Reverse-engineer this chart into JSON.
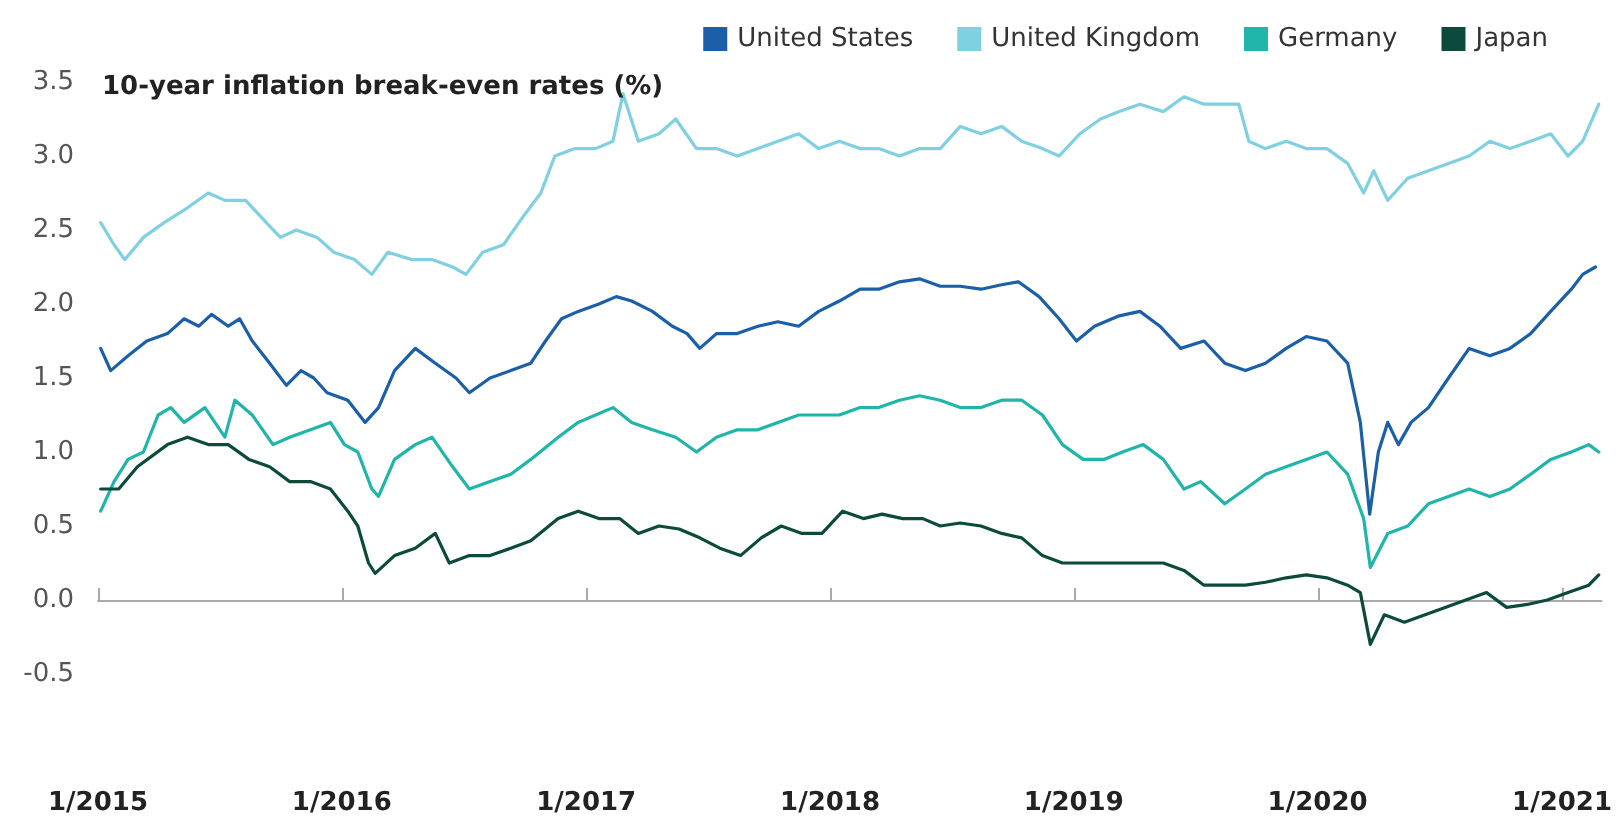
{
  "chart_data": {
    "type": "line",
    "title": "10-year inflation break-even rates (%)",
    "xlim": [
      "2015-01-01",
      "2021-03-01"
    ],
    "xticks": [
      {
        "value": "2015-01-01",
        "label": "1/2015"
      },
      {
        "value": "2016-01-01",
        "label": "1/2016"
      },
      {
        "value": "2017-01-01",
        "label": "1/2017"
      },
      {
        "value": "2018-01-01",
        "label": "1/2018"
      },
      {
        "value": "2019-01-01",
        "label": "1/2019"
      },
      {
        "value": "2020-01-01",
        "label": "1/2020"
      },
      {
        "value": "2021-01-01",
        "label": "1/2021"
      }
    ],
    "ylim": [
      -0.5,
      3.5
    ],
    "yticks": [
      {
        "value": -0.5,
        "label": "-0.5"
      },
      {
        "value": 0,
        "label": "0.0"
      },
      {
        "value": 0.5,
        "label": "0.5"
      },
      {
        "value": 1,
        "label": "1.0"
      },
      {
        "value": 1.5,
        "label": "1.5"
      },
      {
        "value": 2,
        "label": "2.0"
      },
      {
        "value": 2.5,
        "label": "2.5"
      },
      {
        "value": 3,
        "label": "3.0"
      },
      {
        "value": 3.5,
        "label": "3.5"
      }
    ],
    "legend": "top right",
    "marker": "none",
    "line_style": "solid",
    "series": [
      {
        "name": "United States",
        "color": "#1b5fa8",
        "x": [
          "2015-01-05",
          "2015-01-20",
          "2015-02-15",
          "2015-03-15",
          "2015-04-15",
          "2015-05-10",
          "2015-06-01",
          "2015-06-20",
          "2015-07-15",
          "2015-08-01",
          "2015-08-20",
          "2015-09-15",
          "2015-10-10",
          "2015-11-01",
          "2015-11-20",
          "2015-12-10",
          "2016-01-10",
          "2016-02-05",
          "2016-02-25",
          "2016-03-20",
          "2016-04-20",
          "2016-05-20",
          "2016-06-20",
          "2016-07-10",
          "2016-08-10",
          "2016-09-10",
          "2016-10-10",
          "2016-11-01",
          "2016-11-25",
          "2016-12-20",
          "2017-01-20",
          "2017-02-15",
          "2017-03-10",
          "2017-04-10",
          "2017-05-10",
          "2017-06-01",
          "2017-06-20",
          "2017-07-15",
          "2017-08-15",
          "2017-09-15",
          "2017-10-15",
          "2017-11-15",
          "2017-12-15",
          "2018-01-15",
          "2018-02-15",
          "2018-03-15",
          "2018-04-15",
          "2018-05-15",
          "2018-06-15",
          "2018-07-15",
          "2018-08-15",
          "2018-09-15",
          "2018-10-10",
          "2018-11-10",
          "2018-12-10",
          "2019-01-05",
          "2019-02-01",
          "2019-03-10",
          "2019-04-10",
          "2019-05-10",
          "2019-06-10",
          "2019-07-15",
          "2019-08-15",
          "2019-09-15",
          "2019-10-15",
          "2019-11-15",
          "2019-12-15",
          "2020-01-15",
          "2020-02-15",
          "2020-03-05",
          "2020-03-19",
          "2020-04-01",
          "2020-04-15",
          "2020-05-01",
          "2020-05-20",
          "2020-06-15",
          "2020-07-15",
          "2020-08-15",
          "2020-09-15",
          "2020-10-15",
          "2020-11-15",
          "2020-12-15",
          "2021-01-15",
          "2021-02-01",
          "2021-02-20"
        ],
        "values": [
          1.7,
          1.55,
          1.65,
          1.75,
          1.8,
          1.9,
          1.85,
          1.93,
          1.85,
          1.9,
          1.75,
          1.6,
          1.45,
          1.55,
          1.5,
          1.4,
          1.35,
          1.2,
          1.3,
          1.55,
          1.7,
          1.6,
          1.5,
          1.4,
          1.5,
          1.55,
          1.6,
          1.75,
          1.9,
          1.95,
          2.0,
          2.05,
          2.02,
          1.95,
          1.85,
          1.8,
          1.7,
          1.8,
          1.8,
          1.85,
          1.88,
          1.85,
          1.95,
          2.02,
          2.1,
          2.1,
          2.15,
          2.17,
          2.12,
          2.12,
          2.1,
          2.13,
          2.15,
          2.05,
          1.9,
          1.75,
          1.85,
          1.92,
          1.95,
          1.85,
          1.7,
          1.75,
          1.6,
          1.55,
          1.6,
          1.7,
          1.78,
          1.75,
          1.6,
          1.2,
          0.58,
          1.0,
          1.2,
          1.05,
          1.2,
          1.3,
          1.5,
          1.7,
          1.65,
          1.7,
          1.8,
          1.95,
          2.1,
          2.2,
          2.25
        ]
      },
      {
        "name": "United Kingdom",
        "color": "#7fd0e0",
        "x": [
          "2015-01-05",
          "2015-01-25",
          "2015-02-10",
          "2015-03-10",
          "2015-04-10",
          "2015-05-15",
          "2015-06-15",
          "2015-07-10",
          "2015-08-10",
          "2015-09-10",
          "2015-10-01",
          "2015-10-25",
          "2015-11-25",
          "2015-12-20",
          "2016-01-20",
          "2016-02-15",
          "2016-03-10",
          "2016-04-15",
          "2016-05-15",
          "2016-06-15",
          "2016-07-05",
          "2016-07-30",
          "2016-08-30",
          "2016-09-30",
          "2016-10-25",
          "2016-11-15",
          "2016-12-15",
          "2017-01-15",
          "2017-02-10",
          "2017-02-25",
          "2017-03-20",
          "2017-04-20",
          "2017-05-15",
          "2017-06-15",
          "2017-07-15",
          "2017-08-15",
          "2017-09-15",
          "2017-10-15",
          "2017-11-15",
          "2017-12-15",
          "2018-01-15",
          "2018-02-15",
          "2018-03-15",
          "2018-04-15",
          "2018-05-15",
          "2018-06-15",
          "2018-07-15",
          "2018-08-15",
          "2018-09-15",
          "2018-10-15",
          "2018-11-15",
          "2018-12-10",
          "2019-01-10",
          "2019-02-10",
          "2019-03-10",
          "2019-04-10",
          "2019-05-15",
          "2019-06-15",
          "2019-07-15",
          "2019-08-15",
          "2019-09-05",
          "2019-09-20",
          "2019-10-15",
          "2019-11-15",
          "2019-12-15",
          "2020-01-15",
          "2020-02-15",
          "2020-03-10",
          "2020-03-25",
          "2020-04-15",
          "2020-05-15",
          "2020-06-15",
          "2020-07-15",
          "2020-08-15",
          "2020-09-15",
          "2020-10-15",
          "2020-11-15",
          "2020-12-15",
          "2021-01-10",
          "2021-02-01",
          "2021-02-25"
        ],
        "values": [
          2.55,
          2.4,
          2.3,
          2.45,
          2.55,
          2.65,
          2.75,
          2.7,
          2.7,
          2.55,
          2.45,
          2.5,
          2.45,
          2.35,
          2.3,
          2.2,
          2.35,
          2.3,
          2.3,
          2.25,
          2.2,
          2.35,
          2.4,
          2.6,
          2.75,
          3.0,
          3.05,
          3.05,
          3.1,
          3.42,
          3.1,
          3.15,
          3.25,
          3.05,
          3.05,
          3.0,
          3.05,
          3.1,
          3.15,
          3.05,
          3.1,
          3.05,
          3.05,
          3.0,
          3.05,
          3.05,
          3.2,
          3.15,
          3.2,
          3.1,
          3.05,
          3.0,
          3.15,
          3.25,
          3.3,
          3.35,
          3.3,
          3.4,
          3.35,
          3.35,
          3.35,
          3.1,
          3.05,
          3.1,
          3.05,
          3.05,
          2.95,
          2.75,
          2.9,
          2.7,
          2.85,
          2.9,
          2.95,
          3.0,
          3.1,
          3.05,
          3.1,
          3.15,
          3.0,
          3.1,
          3.35
        ]
      },
      {
        "name": "Germany",
        "color": "#1fb5a8",
        "x": [
          "2015-01-05",
          "2015-01-25",
          "2015-02-15",
          "2015-03-10",
          "2015-04-01",
          "2015-04-20",
          "2015-05-10",
          "2015-06-10",
          "2015-07-10",
          "2015-07-25",
          "2015-08-20",
          "2015-09-20",
          "2015-10-15",
          "2015-11-15",
          "2015-12-15",
          "2016-01-05",
          "2016-01-25",
          "2016-02-15",
          "2016-02-25",
          "2016-03-20",
          "2016-04-20",
          "2016-05-15",
          "2016-06-15",
          "2016-07-10",
          "2016-08-10",
          "2016-09-10",
          "2016-10-10",
          "2016-11-20",
          "2016-12-20",
          "2017-01-15",
          "2017-02-10",
          "2017-03-10",
          "2017-04-10",
          "2017-05-15",
          "2017-06-15",
          "2017-07-15",
          "2017-08-15",
          "2017-09-15",
          "2017-10-15",
          "2017-11-15",
          "2017-12-15",
          "2018-01-15",
          "2018-02-15",
          "2018-03-15",
          "2018-04-15",
          "2018-05-15",
          "2018-06-15",
          "2018-07-15",
          "2018-08-15",
          "2018-09-15",
          "2018-10-15",
          "2018-11-15",
          "2018-12-15",
          "2019-01-15",
          "2019-02-15",
          "2019-03-15",
          "2019-04-15",
          "2019-05-15",
          "2019-06-15",
          "2019-07-10",
          "2019-08-15",
          "2019-09-15",
          "2019-10-15",
          "2019-11-15",
          "2019-12-15",
          "2020-01-15",
          "2020-02-15",
          "2020-03-10",
          "2020-03-20",
          "2020-04-15",
          "2020-05-15",
          "2020-06-15",
          "2020-07-15",
          "2020-08-15",
          "2020-09-15",
          "2020-10-15",
          "2020-11-15",
          "2020-12-15",
          "2021-01-15",
          "2021-02-10",
          "2021-02-25"
        ],
        "values": [
          0.6,
          0.8,
          0.95,
          1.0,
          1.25,
          1.3,
          1.2,
          1.3,
          1.1,
          1.35,
          1.25,
          1.05,
          1.1,
          1.15,
          1.2,
          1.05,
          1.0,
          0.75,
          0.7,
          0.95,
          1.05,
          1.1,
          0.9,
          0.75,
          0.8,
          0.85,
          0.95,
          1.1,
          1.2,
          1.25,
          1.3,
          1.2,
          1.15,
          1.1,
          1.0,
          1.1,
          1.15,
          1.15,
          1.2,
          1.25,
          1.25,
          1.25,
          1.3,
          1.3,
          1.35,
          1.38,
          1.35,
          1.3,
          1.3,
          1.35,
          1.35,
          1.25,
          1.05,
          0.95,
          0.95,
          1.0,
          1.05,
          0.95,
          0.75,
          0.8,
          0.65,
          0.75,
          0.85,
          0.9,
          0.95,
          1.0,
          0.85,
          0.55,
          0.22,
          0.45,
          0.5,
          0.65,
          0.7,
          0.75,
          0.7,
          0.75,
          0.85,
          0.95,
          1.0,
          1.05,
          1.0
        ]
      },
      {
        "name": "Japan",
        "color": "#0c4a3c",
        "x": [
          "2015-01-05",
          "2015-02-01",
          "2015-03-01",
          "2015-04-15",
          "2015-05-15",
          "2015-06-15",
          "2015-07-15",
          "2015-08-15",
          "2015-09-15",
          "2015-10-15",
          "2015-11-15",
          "2015-12-15",
          "2016-01-10",
          "2016-01-25",
          "2016-02-10",
          "2016-02-20",
          "2016-03-20",
          "2016-04-20",
          "2016-05-20",
          "2016-06-10",
          "2016-07-10",
          "2016-08-10",
          "2016-09-10",
          "2016-10-10",
          "2016-11-20",
          "2016-12-20",
          "2017-01-20",
          "2017-02-20",
          "2017-03-20",
          "2017-04-20",
          "2017-05-20",
          "2017-06-20",
          "2017-07-20",
          "2017-08-20",
          "2017-09-20",
          "2017-10-20",
          "2017-11-20",
          "2017-12-20",
          "2018-01-20",
          "2018-02-20",
          "2018-03-20",
          "2018-04-20",
          "2018-05-20",
          "2018-06-15",
          "2018-07-15",
          "2018-08-15",
          "2018-09-15",
          "2018-10-15",
          "2018-11-15",
          "2018-12-15",
          "2019-01-15",
          "2019-02-15",
          "2019-03-15",
          "2019-04-15",
          "2019-05-15",
          "2019-06-15",
          "2019-07-15",
          "2019-08-15",
          "2019-09-15",
          "2019-10-15",
          "2019-11-15",
          "2019-12-15",
          "2020-01-15",
          "2020-02-15",
          "2020-03-05",
          "2020-03-20",
          "2020-04-10",
          "2020-05-10",
          "2020-06-10",
          "2020-07-10",
          "2020-08-10",
          "2020-09-10",
          "2020-10-10",
          "2020-11-10",
          "2020-12-10",
          "2021-01-10",
          "2021-02-10",
          "2021-02-25"
        ],
        "values": [
          0.75,
          0.75,
          0.9,
          1.05,
          1.1,
          1.05,
          1.05,
          0.95,
          0.9,
          0.8,
          0.8,
          0.75,
          0.6,
          0.5,
          0.25,
          0.18,
          0.3,
          0.35,
          0.45,
          0.25,
          0.3,
          0.3,
          0.35,
          0.4,
          0.55,
          0.6,
          0.55,
          0.55,
          0.45,
          0.5,
          0.48,
          0.42,
          0.35,
          0.3,
          0.42,
          0.5,
          0.45,
          0.45,
          0.6,
          0.55,
          0.58,
          0.55,
          0.55,
          0.5,
          0.52,
          0.5,
          0.45,
          0.42,
          0.3,
          0.25,
          0.25,
          0.25,
          0.25,
          0.25,
          0.25,
          0.2,
          0.1,
          0.1,
          0.1,
          0.12,
          0.15,
          0.17,
          0.15,
          0.1,
          0.05,
          -0.3,
          -0.1,
          -0.15,
          -0.1,
          -0.05,
          0.0,
          0.05,
          -0.05,
          -0.03,
          0.0,
          0.05,
          0.1,
          0.17
        ]
      }
    ]
  }
}
